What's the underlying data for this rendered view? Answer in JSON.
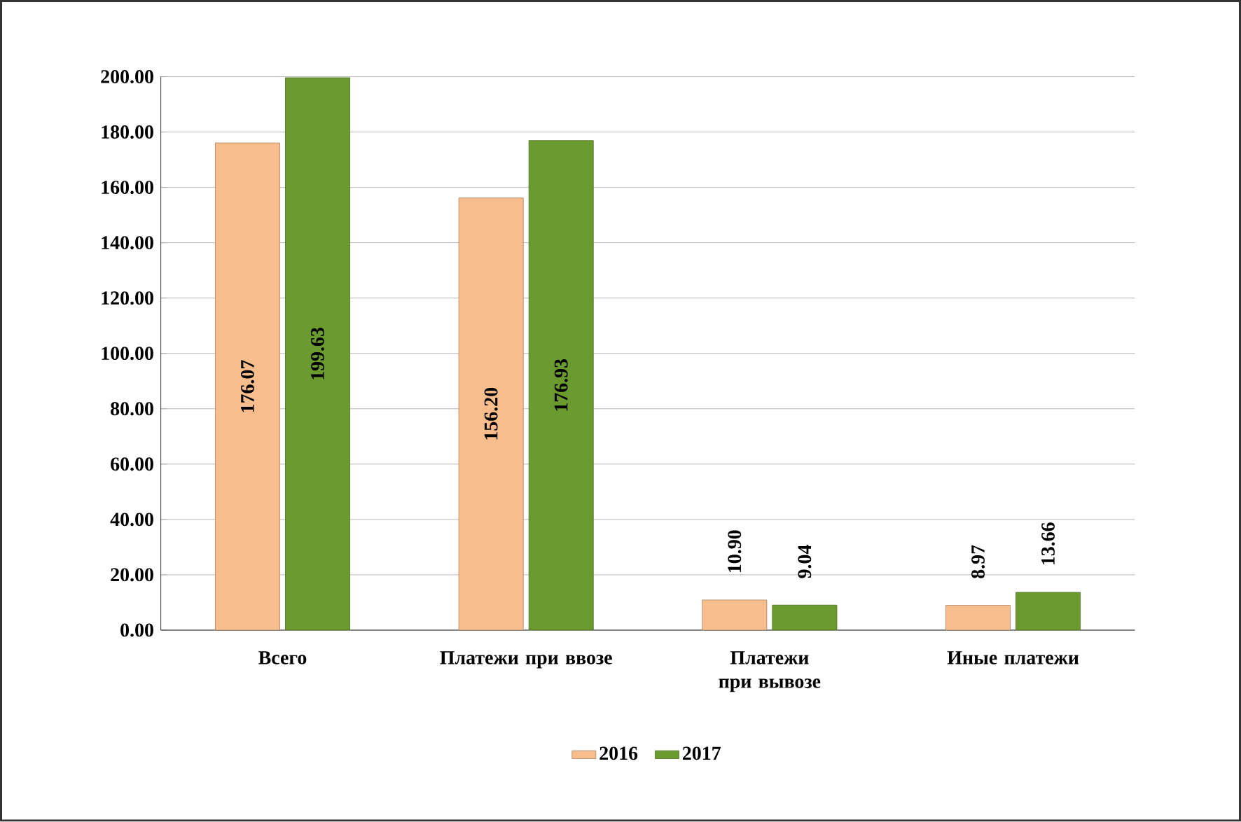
{
  "chart_data": {
    "type": "bar",
    "categories": [
      "Всего",
      "Платежи при ввозе",
      "Платежи при вывозе",
      "Иные платежи"
    ],
    "series": [
      {
        "name": "2016",
        "color": "#f7bd8c",
        "values": [
          176.07,
          156.2,
          10.9,
          8.97
        ],
        "value_labels": [
          "176.07",
          "156.20",
          "10.90",
          "8.97"
        ]
      },
      {
        "name": "2017",
        "color": "#6b9a2f",
        "values": [
          199.63,
          176.93,
          9.04,
          13.66
        ],
        "value_labels": [
          "199.63",
          "176.93",
          "9.04",
          "13.66"
        ]
      }
    ],
    "ylim": [
      0,
      200
    ],
    "yticks": [
      {
        "value": 0,
        "label": "0.00"
      },
      {
        "value": 20,
        "label": "20.00"
      },
      {
        "value": 40,
        "label": "40.00"
      },
      {
        "value": 60,
        "label": "60.00"
      },
      {
        "value": 80,
        "label": "80.00"
      },
      {
        "value": 100,
        "label": "100.00"
      },
      {
        "value": 120,
        "label": "120.00"
      },
      {
        "value": 140,
        "label": "140.00"
      },
      {
        "value": 160,
        "label": "160.00"
      },
      {
        "value": 180,
        "label": "180.00"
      },
      {
        "value": 200,
        "label": "200.00"
      }
    ],
    "grid": "y",
    "legend": "bottom"
  }
}
